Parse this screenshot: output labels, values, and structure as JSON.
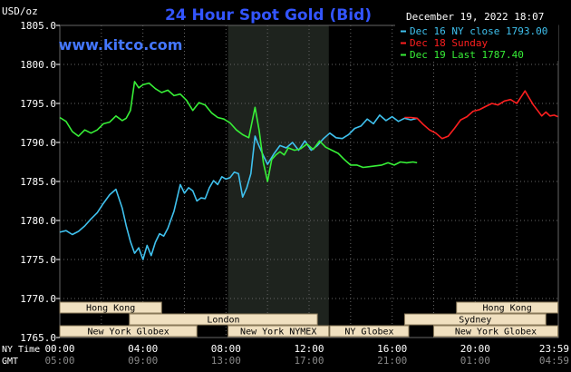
{
  "chart_data": {
    "type": "line",
    "title": "24 Hour Spot Gold (Bid)",
    "watermark": "www.kitco.com",
    "y_unit": "USD/oz",
    "date_label": "December 19, 2022 18:07",
    "ylim": [
      1765.0,
      1805.0
    ],
    "yticks": [
      "1805.0",
      "1800.0",
      "1795.0",
      "1790.0",
      "1785.0",
      "1780.0",
      "1775.0",
      "1770.0",
      "1765.0"
    ],
    "x_row_label_top": "NY Time",
    "x_row_label_bottom": "GMT",
    "xticks_ny": [
      "00:00",
      "04:00",
      "08:00",
      "12:00",
      "16:00",
      "20:00",
      "23:59"
    ],
    "xticks_gmt": [
      "05:00",
      "09:00",
      "13:00",
      "17:00",
      "21:00",
      "01:00",
      "04:59"
    ],
    "grid": true,
    "legend_position": "top-right",
    "colors": {
      "background": "#000000",
      "plot_background": "#000000",
      "grid": "#666666",
      "axis_text": "#ffffff",
      "title": "#3355ff",
      "watermark": "#4477ff",
      "session_fill": "#1e231e",
      "market_box_fill": "#f0e0c0",
      "market_box_text": "#000000"
    },
    "series": [
      {
        "name": "Dec 16 NY close 1793.00",
        "color": "#3fc1ee",
        "x": [
          0.0,
          0.3,
          0.6,
          0.9,
          1.2,
          1.5,
          1.8,
          2.1,
          2.4,
          2.7,
          3.0,
          3.2,
          3.4,
          3.6,
          3.8,
          4.0,
          4.2,
          4.4,
          4.6,
          4.8,
          5.0,
          5.2,
          5.5,
          5.8,
          6.0,
          6.2,
          6.4,
          6.6,
          6.8,
          7.0,
          7.2,
          7.4,
          7.6,
          7.8,
          8.0,
          8.2,
          8.4,
          8.6,
          8.8,
          9.0,
          9.2,
          9.4,
          9.6,
          9.8,
          10.0,
          10.3,
          10.6,
          10.9,
          11.2,
          11.5,
          11.8,
          12.1,
          12.4,
          12.7,
          13.0,
          13.3,
          13.6,
          13.9,
          14.2,
          14.5,
          14.8,
          15.1,
          15.4,
          15.7,
          16.0,
          16.3,
          16.6,
          16.9,
          17.2
        ],
        "y": [
          1778.5,
          1778.7,
          1778.2,
          1778.6,
          1779.3,
          1780.2,
          1781.0,
          1782.2,
          1783.3,
          1784.0,
          1781.6,
          1779.3,
          1777.3,
          1775.8,
          1776.5,
          1775.0,
          1776.8,
          1775.5,
          1777.2,
          1778.3,
          1778.0,
          1779.0,
          1781.2,
          1784.6,
          1783.5,
          1784.2,
          1783.8,
          1782.5,
          1782.9,
          1782.8,
          1784.2,
          1785.1,
          1784.6,
          1785.6,
          1785.3,
          1785.5,
          1786.2,
          1786.0,
          1783.0,
          1784.2,
          1786.0,
          1790.8,
          1789.5,
          1788.3,
          1787.2,
          1788.5,
          1789.6,
          1789.3,
          1790.0,
          1789.0,
          1790.2,
          1789.0,
          1789.6,
          1790.5,
          1791.2,
          1790.6,
          1790.5,
          1791.0,
          1791.8,
          1792.1,
          1793.0,
          1792.4,
          1793.5,
          1792.8,
          1793.3,
          1792.7,
          1793.1,
          1792.9,
          1793.1
        ]
      },
      {
        "name": "Dec 18 Sunday",
        "color": "#ff1f1f",
        "x": [
          16.6,
          16.9,
          17.2,
          17.5,
          17.8,
          18.1,
          18.4,
          18.7,
          19.0,
          19.3,
          19.6,
          19.9,
          20.2,
          20.5,
          20.8,
          21.1,
          21.4,
          21.7,
          22.0,
          22.2,
          22.4,
          22.6,
          22.8,
          23.0,
          23.2,
          23.4,
          23.6,
          23.8,
          23.98
        ],
        "y": [
          1793.2,
          1793.2,
          1793.1,
          1792.3,
          1791.6,
          1791.2,
          1790.5,
          1790.8,
          1791.8,
          1792.9,
          1793.3,
          1794.0,
          1794.2,
          1794.6,
          1795.0,
          1794.8,
          1795.3,
          1795.5,
          1795.0,
          1795.8,
          1796.6,
          1795.7,
          1794.8,
          1794.1,
          1793.4,
          1793.9,
          1793.4,
          1793.5,
          1793.3
        ]
      },
      {
        "name": "Dec 19 Last 1787.40",
        "color": "#37ef37",
        "x": [
          0.0,
          0.3,
          0.6,
          0.9,
          1.2,
          1.5,
          1.8,
          2.1,
          2.4,
          2.7,
          3.0,
          3.2,
          3.4,
          3.6,
          3.8,
          4.0,
          4.3,
          4.6,
          4.9,
          5.2,
          5.5,
          5.8,
          6.1,
          6.4,
          6.7,
          7.0,
          7.3,
          7.6,
          7.9,
          8.2,
          8.5,
          8.8,
          9.1,
          9.4,
          9.6,
          9.8,
          10.0,
          10.2,
          10.4,
          10.6,
          10.8,
          11.0,
          11.3,
          11.6,
          11.9,
          12.2,
          12.5,
          12.8,
          13.1,
          13.4,
          13.7,
          14.0,
          14.3,
          14.6,
          14.9,
          15.2,
          15.5,
          15.8,
          16.1,
          16.4,
          16.7,
          17.0,
          17.2
        ],
        "y": [
          1793.2,
          1792.7,
          1791.4,
          1790.8,
          1791.6,
          1791.2,
          1791.6,
          1792.4,
          1792.6,
          1793.4,
          1792.8,
          1793.1,
          1794.1,
          1797.8,
          1797.0,
          1797.4,
          1797.6,
          1796.9,
          1796.4,
          1796.7,
          1796.0,
          1796.2,
          1795.4,
          1794.1,
          1795.1,
          1794.8,
          1793.8,
          1793.2,
          1793.0,
          1792.5,
          1791.6,
          1791.0,
          1790.6,
          1794.5,
          1791.5,
          1787.4,
          1785.0,
          1787.8,
          1788.4,
          1788.8,
          1788.4,
          1789.3,
          1789.0,
          1789.2,
          1789.8,
          1789.1,
          1790.2,
          1789.4,
          1789.0,
          1788.6,
          1787.8,
          1787.1,
          1787.1,
          1786.8,
          1786.9,
          1787.0,
          1787.1,
          1787.4,
          1787.1,
          1787.5,
          1787.4,
          1787.5,
          1787.4
        ]
      }
    ],
    "sessions": [
      {
        "name": "Hong Kong",
        "start": 0.0,
        "end": 4.9,
        "row": 1
      },
      {
        "name": "London",
        "start": 3.35,
        "end": 12.4,
        "row": 2
      },
      {
        "name": "New York Globex",
        "start": 0.0,
        "end": 6.6,
        "row": 3
      },
      {
        "name": "New York NYMEX",
        "start": 8.1,
        "end": 12.95,
        "row": 3
      },
      {
        "name": "NY Globex",
        "start": 13.0,
        "end": 16.8,
        "row": 3
      },
      {
        "name": "Hong Kong",
        "start": 19.1,
        "end": 23.98,
        "row": 1
      },
      {
        "name": "Sydney",
        "start": 16.6,
        "end": 23.4,
        "row": 2
      },
      {
        "name": "New York Globex",
        "start": 18.0,
        "end": 23.98,
        "row": 3
      }
    ],
    "highlight_session": {
      "name": "New York NYMEX",
      "start": 8.1,
      "end": 12.95
    }
  }
}
